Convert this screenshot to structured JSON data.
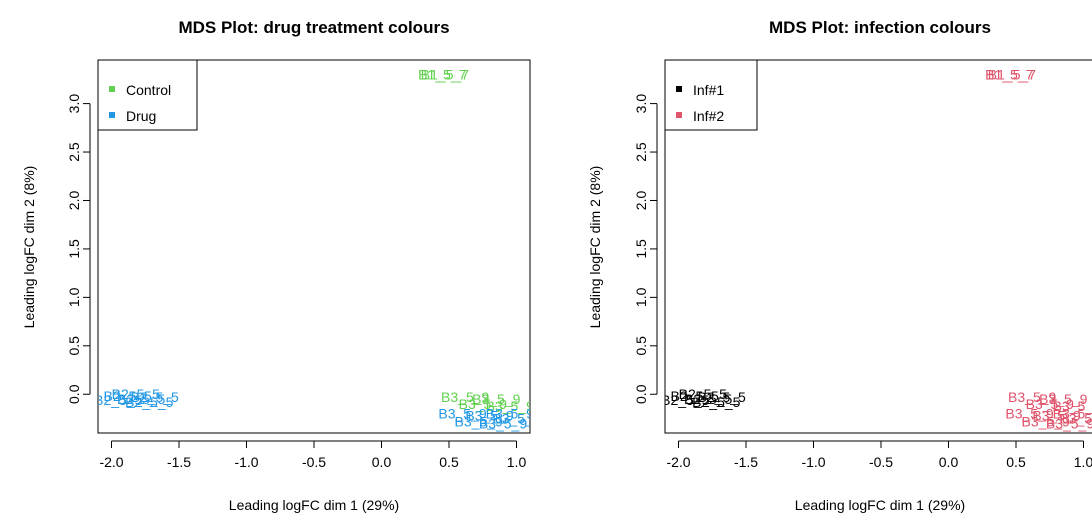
{
  "chart_data": [
    {
      "type": "scatter",
      "title": "MDS Plot: drug treatment colours",
      "xlabel": "Leading logFC dim 1 (29%)",
      "ylabel": "Leading logFC dim 2 (8%)",
      "xlim": [
        -2.1,
        1.1
      ],
      "ylim": [
        -0.4,
        3.45
      ],
      "xticks": [
        "-2.0",
        "-1.5",
        "-1.0",
        "-0.5",
        "0.0",
        "0.5",
        "1.0"
      ],
      "yticks": [
        "0.0",
        "0.5",
        "1.0",
        "1.5",
        "2.0",
        "2.5",
        "3.0"
      ],
      "legend": {
        "position": "top-left",
        "entries": [
          {
            "label": "Control",
            "color": "#61D04F"
          },
          {
            "label": "Drug",
            "color": "#2297E6"
          }
        ]
      },
      "labels": [
        {
          "text": "B1_5_7",
          "x": 0.45,
          "y": 3.3,
          "color": "#61D04F"
        },
        {
          "text": "B1_5_7",
          "x": 0.47,
          "y": 3.3,
          "color": "#61D04F"
        },
        {
          "text": "B3_5_9",
          "x": 0.62,
          "y": -0.03,
          "color": "#61D04F"
        },
        {
          "text": "B3_5_9",
          "x": 0.85,
          "y": -0.05,
          "color": "#61D04F"
        },
        {
          "text": "B3_5_9",
          "x": 0.95,
          "y": -0.12,
          "color": "#61D04F"
        },
        {
          "text": "B3_5_9",
          "x": 0.75,
          "y": -0.1,
          "color": "#61D04F"
        },
        {
          "text": "B3_5_9",
          "x": 0.6,
          "y": -0.2,
          "color": "#2297E6"
        },
        {
          "text": "B3_5_9",
          "x": 0.8,
          "y": -0.22,
          "color": "#2297E6"
        },
        {
          "text": "B3_5_9",
          "x": 0.95,
          "y": -0.2,
          "color": "#2297E6"
        },
        {
          "text": "B3_5_9",
          "x": 0.72,
          "y": -0.28,
          "color": "#2297E6"
        },
        {
          "text": "B3_5_9",
          "x": 0.9,
          "y": -0.3,
          "color": "#2297E6"
        },
        {
          "text": "B3_5_9",
          "x": 1.0,
          "y": -0.25,
          "color": "#2297E6"
        },
        {
          "text": "B2_5_5",
          "x": -1.88,
          "y": -0.02,
          "color": "#2297E6"
        },
        {
          "text": "B2_5_5",
          "x": -1.78,
          "y": -0.05,
          "color": "#2297E6"
        },
        {
          "text": "B2_5_5",
          "x": -1.68,
          "y": -0.03,
          "color": "#2297E6"
        },
        {
          "text": "B2_5_5",
          "x": -1.95,
          "y": -0.06,
          "color": "#2297E6"
        },
        {
          "text": "B2_5_5",
          "x": -1.72,
          "y": -0.08,
          "color": "#2297E6"
        },
        {
          "text": "B2_5_5",
          "x": -1.82,
          "y": 0.0,
          "color": "#2297E6"
        }
      ]
    },
    {
      "type": "scatter",
      "title": "MDS Plot: infection colours",
      "xlabel": "Leading logFC dim 1 (29%)",
      "ylabel": "Leading logFC dim 2 (8%)",
      "xlim": [
        -2.1,
        1.1
      ],
      "ylim": [
        -0.4,
        3.45
      ],
      "xticks": [
        "-2.0",
        "-1.5",
        "-1.0",
        "-0.5",
        "0.0",
        "0.5",
        "1.0"
      ],
      "yticks": [
        "0.0",
        "0.5",
        "1.0",
        "1.5",
        "2.0",
        "2.5",
        "3.0"
      ],
      "legend": {
        "position": "top-left",
        "entries": [
          {
            "label": "Inf#1",
            "color": "#000000"
          },
          {
            "label": "Inf#2",
            "color": "#DF536B"
          }
        ]
      },
      "labels": [
        {
          "text": "B1_5_7",
          "x": 0.45,
          "y": 3.3,
          "color": "#DF536B"
        },
        {
          "text": "B1_5_7",
          "x": 0.47,
          "y": 3.3,
          "color": "#DF536B"
        },
        {
          "text": "B3_5_9",
          "x": 0.62,
          "y": -0.03,
          "color": "#DF536B"
        },
        {
          "text": "B3_5_9",
          "x": 0.85,
          "y": -0.05,
          "color": "#DF536B"
        },
        {
          "text": "B3_5_9",
          "x": 0.95,
          "y": -0.12,
          "color": "#DF536B"
        },
        {
          "text": "B3_5_9",
          "x": 0.75,
          "y": -0.1,
          "color": "#DF536B"
        },
        {
          "text": "B3_5_9",
          "x": 0.6,
          "y": -0.2,
          "color": "#DF536B"
        },
        {
          "text": "B3_5_9",
          "x": 0.8,
          "y": -0.22,
          "color": "#DF536B"
        },
        {
          "text": "B3_5_9",
          "x": 0.95,
          "y": -0.2,
          "color": "#DF536B"
        },
        {
          "text": "B3_5_9",
          "x": 0.72,
          "y": -0.28,
          "color": "#DF536B"
        },
        {
          "text": "B3_5_9",
          "x": 0.9,
          "y": -0.3,
          "color": "#DF536B"
        },
        {
          "text": "B3_5_9",
          "x": 1.0,
          "y": -0.25,
          "color": "#DF536B"
        },
        {
          "text": "B2_5_5",
          "x": -1.88,
          "y": -0.02,
          "color": "#000000"
        },
        {
          "text": "B2_5_5",
          "x": -1.78,
          "y": -0.05,
          "color": "#000000"
        },
        {
          "text": "B2_5_5",
          "x": -1.68,
          "y": -0.03,
          "color": "#000000"
        },
        {
          "text": "B2_5_5",
          "x": -1.95,
          "y": -0.06,
          "color": "#000000"
        },
        {
          "text": "B2_5_5",
          "x": -1.72,
          "y": -0.08,
          "color": "#000000"
        },
        {
          "text": "B2_5_5",
          "x": -1.82,
          "y": 0.0,
          "color": "#000000"
        }
      ]
    }
  ]
}
